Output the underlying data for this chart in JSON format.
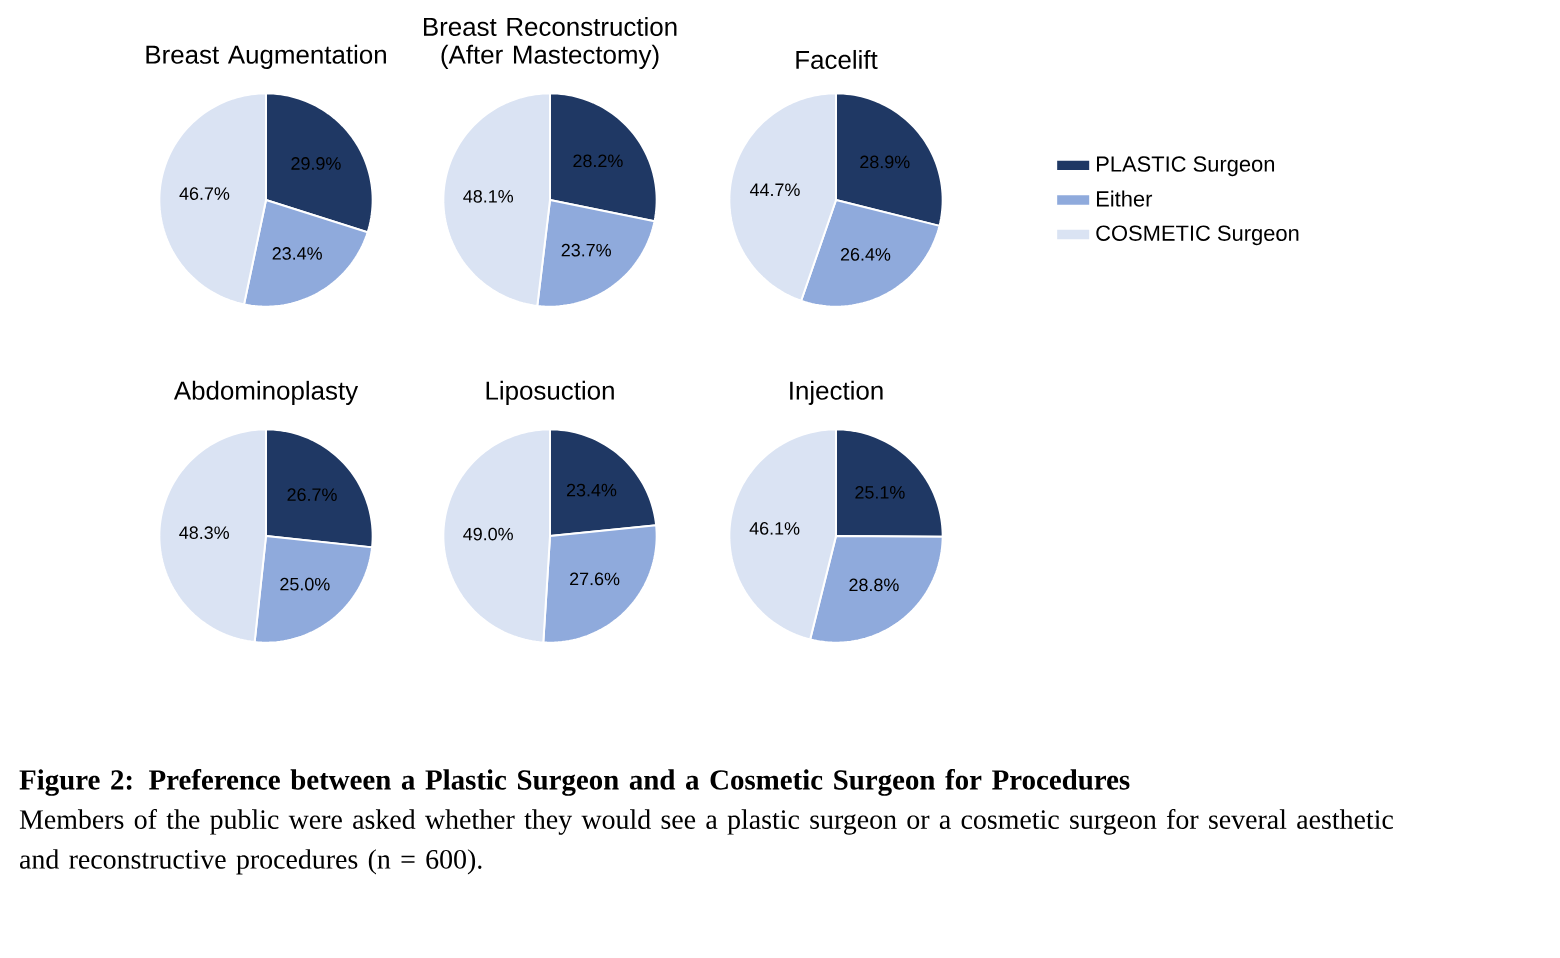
{
  "chart_data": [
    {
      "type": "pie",
      "title": "Breast Augmentation",
      "categories": [
        null,
        null,
        null
      ],
      "values": [
        29.9,
        23.4,
        46.7
      ],
      "value_labels": [
        "29.9%",
        "23.4%",
        "46.7%"
      ],
      "colors": [
        "#1f3864",
        "#8faadc",
        "#dae3f3"
      ],
      "legend": false
    },
    {
      "type": "pie",
      "title": "Breast Reconstruction (After Mastectomy)",
      "categories": [
        null,
        null,
        null
      ],
      "values": [
        28.2,
        23.7,
        48.1
      ],
      "value_labels": [
        "28.2%",
        "23.7%",
        "48.1%"
      ],
      "colors": [
        "#1f3864",
        "#8faadc",
        "#dae3f3"
      ],
      "legend": false
    },
    {
      "type": "pie",
      "title": "Facelift",
      "categories": [
        "PLASTIC Surgeon",
        "Either",
        "COSMETIC Surgeon"
      ],
      "values": [
        28.9,
        26.4,
        44.7
      ],
      "value_labels": [
        "28.9%",
        "26.4%",
        "44.7%"
      ],
      "colors": [
        "#1f3864",
        "#8faadc",
        "#dae3f3"
      ],
      "legend": "right"
    },
    {
      "type": "pie",
      "title": "Abdominoplasty",
      "categories": [
        null,
        null,
        null
      ],
      "values": [
        26.7,
        25.0,
        48.3
      ],
      "value_labels": [
        "26.7%",
        "25.0%",
        "48.3%"
      ],
      "colors": [
        "#1f3864",
        "#8faadc",
        "#dae3f3"
      ],
      "legend": false
    },
    {
      "type": "pie",
      "title": "Liposuction",
      "categories": [
        null,
        null,
        null
      ],
      "values": [
        23.4,
        27.6,
        49.0
      ],
      "value_labels": [
        "23.4%",
        "27.6%",
        "49.0%"
      ],
      "colors": [
        "#1f3864",
        "#8faadc",
        "#dae3f3"
      ],
      "legend": false
    },
    {
      "type": "pie",
      "title": "Injection",
      "categories": [
        null,
        null,
        null
      ],
      "values": [
        25.1,
        28.8,
        46.1
      ],
      "value_labels": [
        "25.1%",
        "28.8%",
        "46.1%"
      ],
      "colors": [
        "#1f3864",
        "#8faadc",
        "#dae3f3"
      ],
      "legend": false,
      "annotations": [
        "Figure 2: Preference between a Plastic Surgeon and a Cosmetic Surgeon for Procedures",
        "Members of the public were asked whether they would see a plastic surgeon or a cosmetic surgeon for several aesthetic and reconstructive procedures (n = 600)."
      ]
    }
  ]
}
